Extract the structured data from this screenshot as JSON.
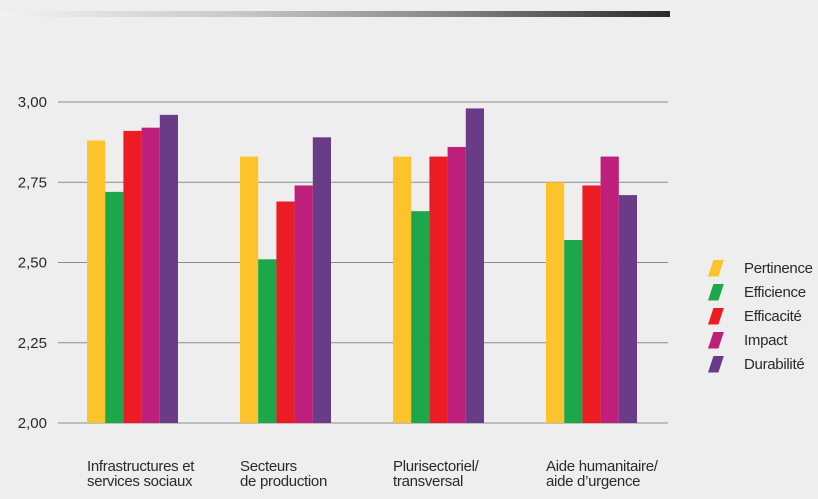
{
  "chart_data": {
    "type": "bar",
    "categories": [
      "Infrastructures et\nservices sociaux",
      "Secteurs\nde production",
      "Plurisectoriel/\ntransversal",
      "Aide humanitaire/\naide d’urgence"
    ],
    "series": [
      {
        "name": "Pertinence",
        "color": "#fdc32a",
        "values": [
          2.88,
          2.83,
          2.83,
          2.75
        ]
      },
      {
        "name": "Efficience",
        "color": "#1ca84a",
        "values": [
          2.72,
          2.51,
          2.66,
          2.57
        ]
      },
      {
        "name": "Efficacité",
        "color": "#ec1c24",
        "values": [
          2.91,
          2.69,
          2.83,
          2.74
        ]
      },
      {
        "name": "Impact",
        "color": "#be1f7a",
        "values": [
          2.92,
          2.74,
          2.86,
          2.83
        ]
      },
      {
        "name": "Durabilité",
        "color": "#6a3b86",
        "values": [
          2.96,
          2.89,
          2.98,
          2.71
        ]
      }
    ],
    "yticks": [
      "3,00",
      "2,75",
      "2,50",
      "2,25",
      "2,00"
    ],
    "ylim": [
      2.0,
      3.0
    ],
    "grid": true,
    "legend_position": "right"
  }
}
